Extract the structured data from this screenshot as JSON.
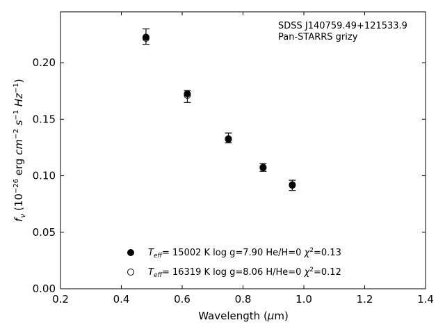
{
  "chart_data": {
    "type": "scatter",
    "annotation": {
      "line1": "SDSS J140759.49+121533.9",
      "line2": "Pan-STARRS grizy"
    },
    "xlabel": {
      "main": "Wavelength (",
      "mu": "μ",
      "unit": "m)"
    },
    "ylabel": {
      "f": "f",
      "nu": "ν",
      "open": " (10",
      "exp1": "−26",
      "erg": " erg ",
      "cm": "cm",
      "exp2": "−2",
      "s": " s",
      "exp3": "−1",
      "hz": " Hz",
      "exp4": "−1",
      "close": ")"
    },
    "xlim": [
      0.2,
      1.4
    ],
    "ylim": [
      0.0,
      0.245
    ],
    "xticks": [
      0.2,
      0.4,
      0.6,
      0.8,
      1.0,
      1.2,
      1.4
    ],
    "xtick_labels": [
      "0.2",
      "0.4",
      "0.6",
      "0.8",
      "1.0",
      "1.2",
      "1.4"
    ],
    "yticks": [
      0.0,
      0.05,
      0.1,
      0.15,
      0.2
    ],
    "ytick_labels": [
      "0.00",
      "0.05",
      "0.10",
      "0.15",
      "0.20"
    ],
    "observed": [
      {
        "x": 0.481,
        "y": 0.2231,
        "err": 0.0068
      },
      {
        "x": 0.617,
        "y": 0.1701,
        "err": 0.0053
      },
      {
        "x": 0.752,
        "y": 0.1335,
        "err": 0.0043
      },
      {
        "x": 0.866,
        "y": 0.1073,
        "err": 0.0034
      },
      {
        "x": 0.962,
        "y": 0.0915,
        "err": 0.0045
      }
    ],
    "series": [
      {
        "marker": "filled",
        "values": [
          {
            "x": 0.481,
            "y": 0.2226
          },
          {
            "x": 0.617,
            "y": 0.1725
          },
          {
            "x": 0.752,
            "y": 0.1327
          },
          {
            "x": 0.866,
            "y": 0.1075
          },
          {
            "x": 0.962,
            "y": 0.092
          }
        ]
      },
      {
        "marker": "open",
        "values": [
          {
            "x": 0.481,
            "y": 0.2216
          },
          {
            "x": 0.617,
            "y": 0.1712
          },
          {
            "x": 0.752,
            "y": 0.1322
          },
          {
            "x": 0.866,
            "y": 0.1071
          },
          {
            "x": 0.962,
            "y": 0.0916
          }
        ]
      }
    ],
    "legend": [
      {
        "marker": "filled",
        "T": "T",
        "eff": "eff",
        "text1": "= 15002 K  log g=7.90  He/H=0  ",
        "chi": "χ",
        "two": "2",
        "text2": "=0.13"
      },
      {
        "marker": "open",
        "T": "T",
        "eff": "eff",
        "text1": "= 16319 K  log g=8.06  H/He=0  ",
        "chi": "χ",
        "two": "2",
        "text2": "=0.12"
      }
    ],
    "legend_position": "lower-center",
    "grid": false,
    "colors": {
      "marker": "#000000",
      "axes": "#000000",
      "background": "#ffffff"
    }
  }
}
